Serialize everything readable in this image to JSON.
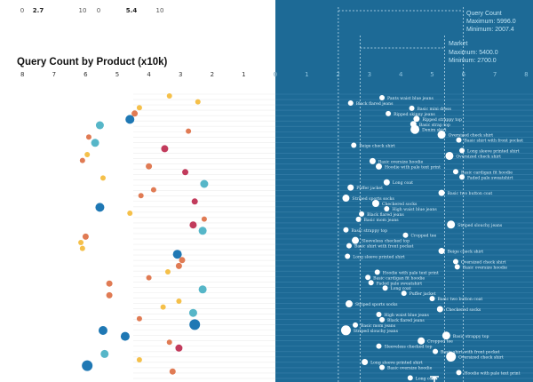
{
  "top_scale": {
    "left_labels": [
      "0",
      "2.7"
    ],
    "right_labels": [
      "10",
      "0",
      "5.4",
      "10"
    ]
  },
  "chart_data": {
    "type": "scatter",
    "title": "Query Count by Product (x10k)",
    "left_axis": {
      "ticks": [
        "8",
        "7",
        "6",
        "5",
        "4",
        "3",
        "2",
        "1",
        "0"
      ],
      "range": [
        0,
        8
      ]
    },
    "right_axis": {
      "ticks": [
        "0",
        "1",
        "2",
        "3",
        "4",
        "5",
        "6",
        "7",
        "8"
      ],
      "range": [
        0,
        8
      ]
    },
    "annotations": {
      "query_count": {
        "label": "Query Count",
        "max_label": "Maximum: 5996.0",
        "min_label": "Minimum: 2007.4",
        "max": 5.996,
        "min": 2.0074
      },
      "market": {
        "label": "Market",
        "max_label": "Maximum: 5400.0",
        "min_label": "Minimum: 2700.0",
        "max": 5.4,
        "min": 2.7
      }
    },
    "colors": {
      "yellow": "#f5c04a",
      "orange": "#e07b54",
      "red": "#c23b5c",
      "teal": "#56b6c8",
      "blue": "#1f78b4",
      "panel": "#1d6a96",
      "white": "#ffffff"
    },
    "left_points": [
      {
        "value": 3.35,
        "color": "yellow",
        "size": 3
      },
      {
        "value": 2.45,
        "color": "yellow",
        "size": 3
      },
      {
        "value": 4.3,
        "color": "yellow",
        "size": 3
      },
      {
        "value": 4.45,
        "color": "orange",
        "size": 3.5
      },
      {
        "value": 4.6,
        "color": "blue",
        "size": 5
      },
      {
        "value": 5.55,
        "color": "teal",
        "size": 4.5
      },
      {
        "value": 2.75,
        "color": "orange",
        "size": 3
      },
      {
        "value": 5.9,
        "color": "orange",
        "size": 3
      },
      {
        "value": 5.7,
        "color": "teal",
        "size": 4.5
      },
      {
        "value": 3.5,
        "color": "red",
        "size": 4
      },
      {
        "value": 5.95,
        "color": "yellow",
        "size": 3
      },
      {
        "value": 6.1,
        "color": "orange",
        "size": 3
      },
      {
        "value": 4.0,
        "color": "orange",
        "size": 3.5
      },
      {
        "value": 2.85,
        "color": "red",
        "size": 3.5
      },
      {
        "value": 5.45,
        "color": "yellow",
        "size": 3
      },
      {
        "value": 2.25,
        "color": "teal",
        "size": 4.5
      },
      {
        "value": 3.85,
        "color": "orange",
        "size": 3
      },
      {
        "value": 4.25,
        "color": "orange",
        "size": 3
      },
      {
        "value": 2.55,
        "color": "red",
        "size": 3.5
      },
      {
        "value": 5.55,
        "color": "blue",
        "size": 5
      },
      {
        "value": 4.6,
        "color": "yellow",
        "size": 3
      },
      {
        "value": 2.25,
        "color": "orange",
        "size": 3
      },
      {
        "value": 2.6,
        "color": "red",
        "size": 4
      },
      {
        "value": 2.3,
        "color": "teal",
        "size": 4.5
      },
      {
        "value": 6.0,
        "color": "orange",
        "size": 3.5
      },
      {
        "value": 6.15,
        "color": "yellow",
        "size": 3
      },
      {
        "value": 6.1,
        "color": "yellow",
        "size": 3
      },
      {
        "value": 3.1,
        "color": "blue",
        "size": 5
      },
      {
        "value": 2.95,
        "color": "orange",
        "size": 3.5
      },
      {
        "value": 3.05,
        "color": "orange",
        "size": 3.5
      },
      {
        "value": 3.4,
        "color": "yellow",
        "size": 3
      },
      {
        "value": 4.0,
        "color": "orange",
        "size": 3
      },
      {
        "value": 5.25,
        "color": "orange",
        "size": 3.5
      },
      {
        "value": 2.3,
        "color": "teal",
        "size": 4.5
      },
      {
        "value": 5.25,
        "color": "orange",
        "size": 3.5
      },
      {
        "value": 3.05,
        "color": "yellow",
        "size": 3
      },
      {
        "value": 3.55,
        "color": "yellow",
        "size": 3
      },
      {
        "value": 2.6,
        "color": "teal",
        "size": 4.5
      },
      {
        "value": 4.3,
        "color": "orange",
        "size": 3
      },
      {
        "value": 2.55,
        "color": "blue",
        "size": 6
      },
      {
        "value": 5.45,
        "color": "blue",
        "size": 5
      },
      {
        "value": 4.75,
        "color": "blue",
        "size": 5
      },
      {
        "value": 3.35,
        "color": "orange",
        "size": 3
      },
      {
        "value": 3.05,
        "color": "red",
        "size": 4
      },
      {
        "value": 5.4,
        "color": "teal",
        "size": 4.5
      },
      {
        "value": 4.3,
        "color": "yellow",
        "size": 3
      },
      {
        "value": 5.95,
        "color": "blue",
        "size": 6
      },
      {
        "value": 3.25,
        "color": "orange",
        "size": 3.5
      }
    ],
    "right_points": [
      {
        "value": 3.4,
        "size": 3,
        "label": "Pants waist blue jeans"
      },
      {
        "value": 2.4,
        "size": 3,
        "label": "Black flared jeans"
      },
      {
        "value": 4.35,
        "size": 3,
        "label": "Basic mini dress"
      },
      {
        "value": 3.6,
        "size": 3,
        "label": "Ripped skinny jeans"
      },
      {
        "value": 4.5,
        "size": 3.5,
        "label": "Ripped strappy top"
      },
      {
        "value": 4.4,
        "size": 3.5,
        "label": "Basic strap top"
      },
      {
        "value": 4.45,
        "size": 5,
        "label": "Denim skirt"
      },
      {
        "value": 5.3,
        "size": 4.5,
        "label": "Oversized check shirt"
      },
      {
        "value": 5.85,
        "size": 3,
        "label": "Basic shirt with front pocket"
      },
      {
        "value": 2.5,
        "size": 3,
        "label": "Beige check shirt"
      },
      {
        "value": 5.95,
        "size": 3,
        "label": "Long sleeve printed shirt"
      },
      {
        "value": 5.55,
        "size": 4.5,
        "label": "Oversized check shirt"
      },
      {
        "value": 3.1,
        "size": 3.5,
        "label": "Basic oversize hoodie"
      },
      {
        "value": 3.3,
        "size": 3.5,
        "label": "Hoodie with pale text print"
      },
      {
        "value": 5.75,
        "size": 3,
        "label": "Basic cardigan fit hoodie"
      },
      {
        "value": 5.95,
        "size": 3,
        "label": "Faded pale sweatshirt"
      },
      {
        "value": 3.55,
        "size": 3.5,
        "label": "Long coat"
      },
      {
        "value": 2.4,
        "size": 3.5,
        "label": "Puffer jacket"
      },
      {
        "value": 5.3,
        "size": 3.5,
        "label": "Basic two button coat"
      },
      {
        "value": 2.25,
        "size": 4,
        "label": "Striped sports socks"
      },
      {
        "value": 3.2,
        "size": 4,
        "label": "Checkered socks"
      },
      {
        "value": 3.55,
        "size": 3,
        "label": "High waist blue jeans"
      },
      {
        "value": 2.75,
        "size": 3,
        "label": "Black flared jeans"
      },
      {
        "value": 2.65,
        "size": 3,
        "label": "Basic mom jeans"
      },
      {
        "value": 5.6,
        "size": 4.5,
        "label": "Striped slouchy jeans"
      },
      {
        "value": 2.25,
        "size": 3,
        "label": "Basic strappy top"
      },
      {
        "value": 4.15,
        "size": 3,
        "label": "Cropped tee"
      },
      {
        "value": 2.55,
        "size": 4,
        "label": "Sleeveless checked top"
      },
      {
        "value": 2.35,
        "size": 3,
        "label": "Basic shirt with front pocket"
      },
      {
        "value": 5.3,
        "size": 3.5,
        "label": "Beige check shirt"
      },
      {
        "value": 2.3,
        "size": 3,
        "label": "Long sleeve printed shirt"
      },
      {
        "value": 5.75,
        "size": 3,
        "label": "Oversized check shirt"
      },
      {
        "value": 5.8,
        "size": 3,
        "label": "Basic oversize hoodie"
      },
      {
        "value": 3.25,
        "size": 3,
        "label": "Hoodie with pale text print"
      },
      {
        "value": 2.95,
        "size": 3,
        "label": "Basic cardigan fit hoodie"
      },
      {
        "value": 3.05,
        "size": 3,
        "label": "Faded pale sweatshirt"
      },
      {
        "value": 3.5,
        "size": 3,
        "label": "Long coat"
      },
      {
        "value": 4.1,
        "size": 3,
        "label": "Puffer jacket"
      },
      {
        "value": 5.0,
        "size": 3,
        "label": "Basic two button coat"
      },
      {
        "value": 2.35,
        "size": 4,
        "label": "Striped sports socks"
      },
      {
        "value": 5.25,
        "size": 3.5,
        "label": "Checkered socks"
      },
      {
        "value": 3.3,
        "size": 3,
        "label": "High waist blue jeans"
      },
      {
        "value": 3.4,
        "size": 3,
        "label": "Black flared jeans"
      },
      {
        "value": 2.55,
        "size": 3,
        "label": "Basic mom jeans"
      },
      {
        "value": 2.25,
        "size": 5.5,
        "label": "Striped slouchy jeans"
      },
      {
        "value": 5.45,
        "size": 4.5,
        "label": "Basic strappy top"
      },
      {
        "value": 4.65,
        "size": 4,
        "label": "Cropped tee"
      },
      {
        "value": 3.3,
        "size": 3,
        "label": "Sleeveless checked top"
      },
      {
        "value": 5.1,
        "size": 3,
        "label": "Basic shirt with front pocket"
      },
      {
        "value": 5.6,
        "size": 5.5,
        "label": "Oversized check shirt"
      },
      {
        "value": 2.85,
        "size": 3.5,
        "label": "Long sleeve printed shirt"
      },
      {
        "value": 3.4,
        "size": 3,
        "label": "Basic oversize hoodie"
      },
      {
        "value": 5.85,
        "size": 3,
        "label": "Hoodie with pale text print"
      },
      {
        "value": 4.3,
        "size": 3,
        "label": "Long coat"
      }
    ]
  }
}
